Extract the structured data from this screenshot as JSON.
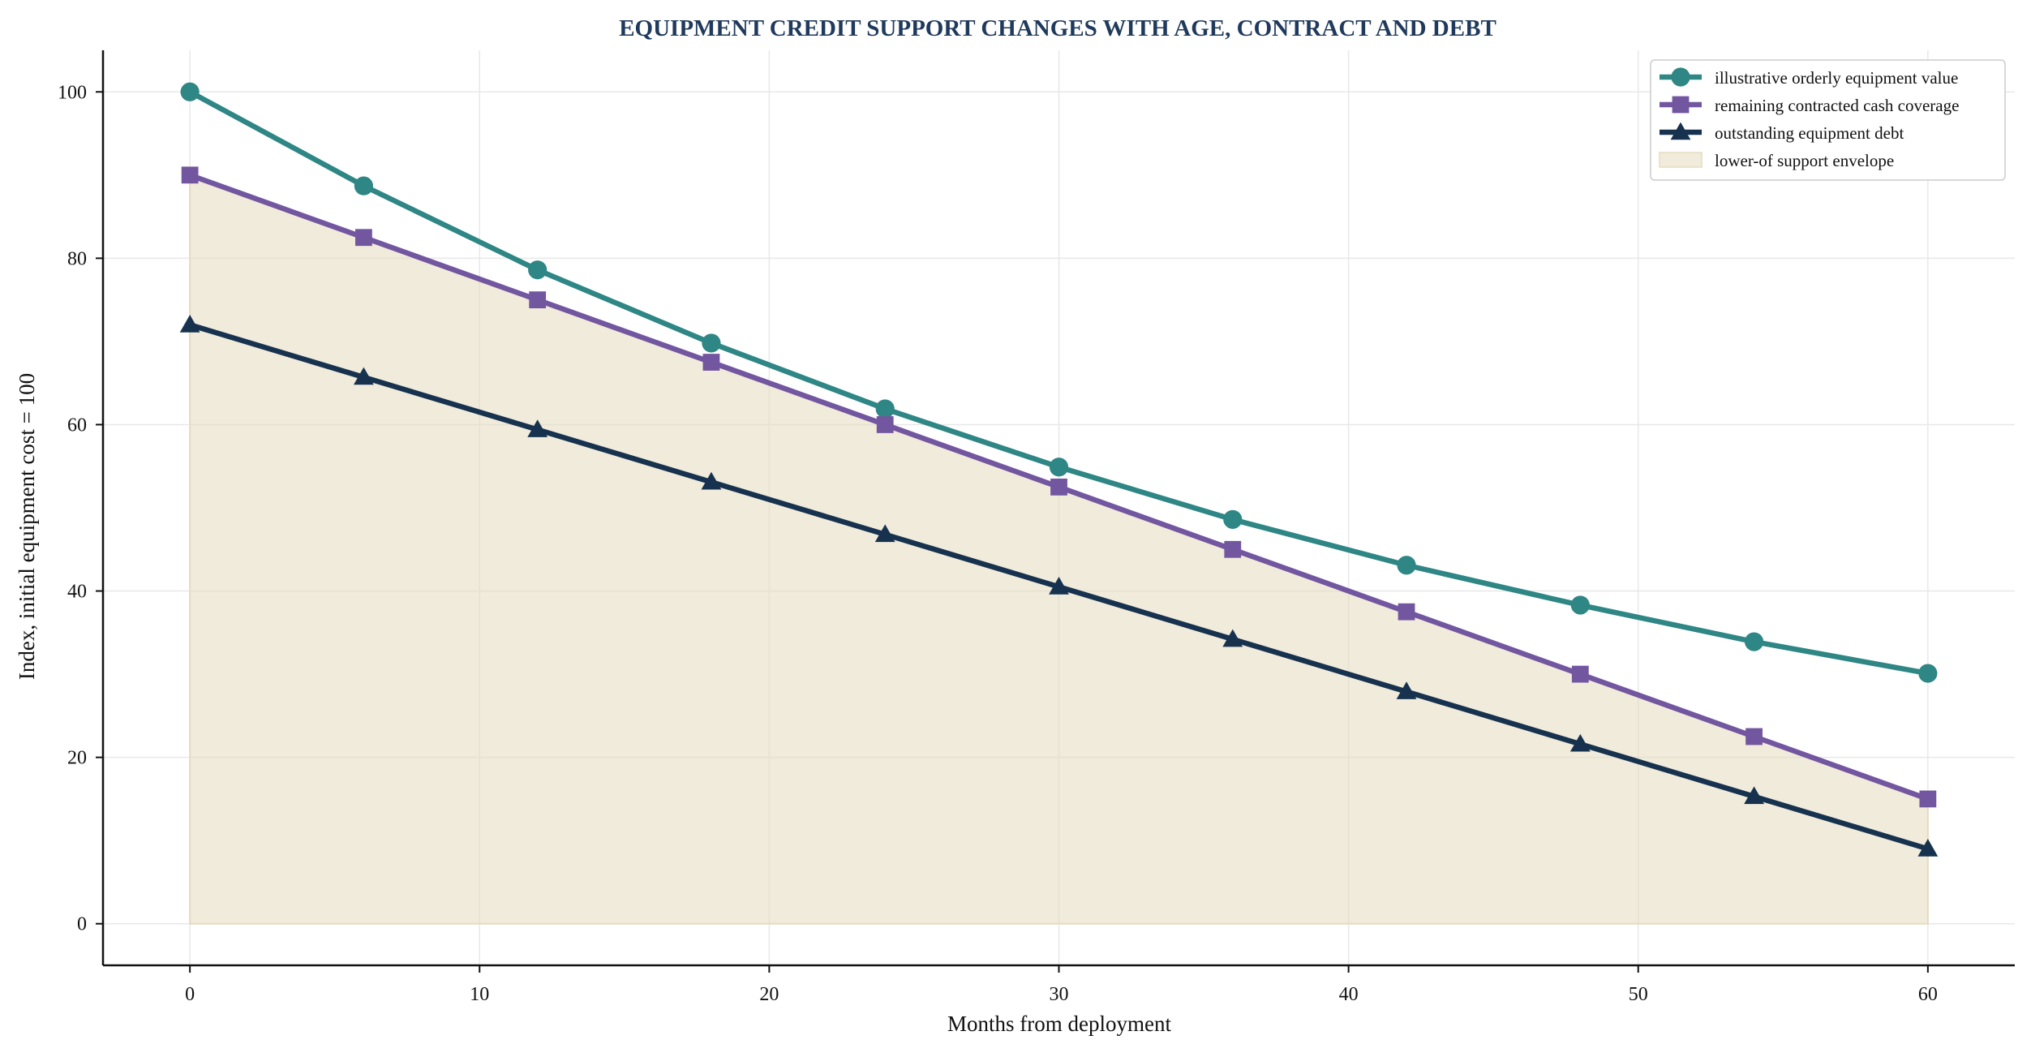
{
  "chart_data": {
    "type": "line",
    "title": "EQUIPMENT CREDIT SUPPORT CHANGES WITH AGE, CONTRACT AND DEBT",
    "xlabel": "Months from deployment",
    "ylabel": "Index, initial equipment cost = 100",
    "x": [
      0,
      6,
      12,
      18,
      24,
      30,
      36,
      42,
      48,
      54,
      60
    ],
    "xlim": [
      -3,
      63
    ],
    "ylim": [
      -5,
      105
    ],
    "xticks": [
      0,
      10,
      20,
      30,
      40,
      50,
      60
    ],
    "yticks": [
      0,
      20,
      40,
      60,
      80,
      100
    ],
    "xtick_labels": [
      "0",
      "10",
      "20",
      "30",
      "40",
      "50",
      "60"
    ],
    "ytick_labels": [
      "0",
      "20",
      "40",
      "60",
      "80",
      "100"
    ],
    "grid": true,
    "legend_position": "top-right",
    "series": [
      {
        "name": "illustrative orderly equipment value",
        "marker": "circle",
        "color": "#2e8685",
        "values": [
          100,
          88.7,
          78.6,
          69.8,
          61.9,
          54.9,
          48.6,
          43.1,
          38.3,
          33.9,
          30.1
        ]
      },
      {
        "name": "remaining contracted cash coverage",
        "marker": "square",
        "color": "#7356a0",
        "values": [
          90,
          82.5,
          75,
          67.5,
          60,
          52.5,
          45,
          37.5,
          30,
          22.5,
          15
        ]
      },
      {
        "name": "outstanding equipment debt",
        "marker": "triangle",
        "color": "#17324f",
        "values": [
          72,
          65.7,
          59.4,
          53.1,
          46.8,
          40.5,
          34.2,
          27.9,
          21.6,
          15.3,
          9
        ]
      }
    ],
    "area": {
      "name": "lower-of support envelope",
      "color": "#e6dbbd",
      "values": [
        90,
        82.5,
        75,
        67.5,
        60,
        52.5,
        45,
        37.5,
        30,
        22.5,
        15
      ]
    }
  },
  "colors": {
    "title": "#1f3a5c",
    "axis": "#111111",
    "grid": "#e8e8e8",
    "legend_border": "#cccccc"
  }
}
